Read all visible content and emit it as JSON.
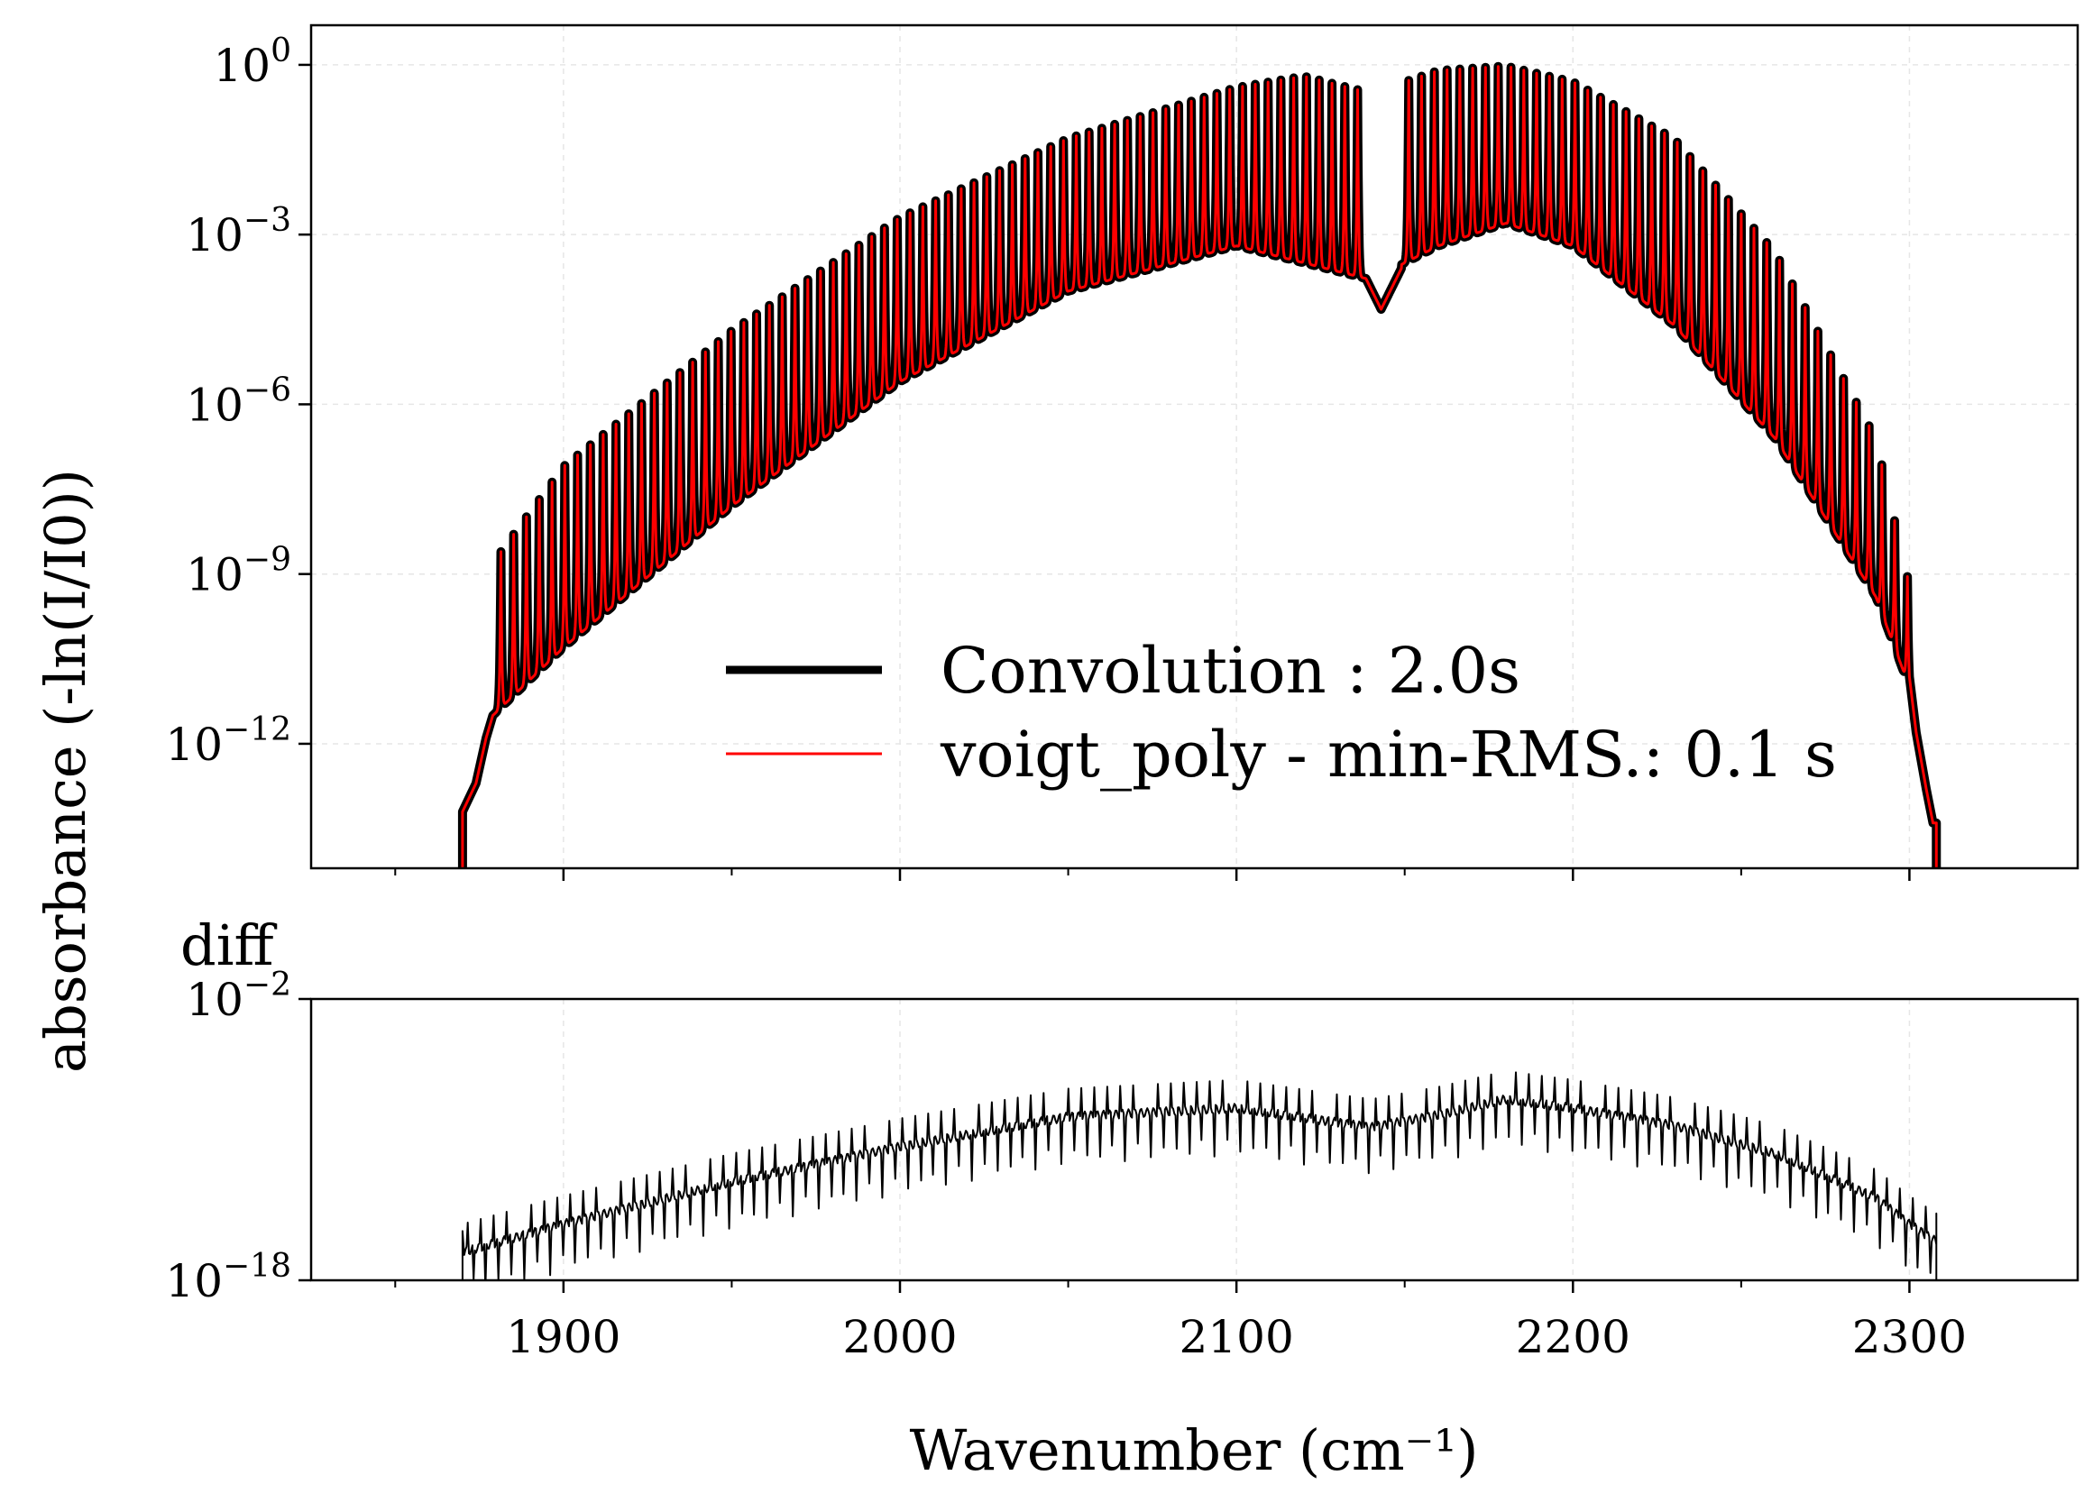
{
  "chart_data": [
    {
      "type": "line",
      "panel": "top",
      "xlabel": "",
      "ylabel": "absorbance (-ln(I/I0))",
      "xlim": [
        1825,
        2350
      ],
      "ylim_log10": [
        -14.2,
        0.7
      ],
      "yscale": "log",
      "yticks": [
        {
          "base": "10",
          "exp": "0",
          "value": 1
        },
        {
          "base": "10",
          "exp": "−3",
          "value": 0.001
        },
        {
          "base": "10",
          "exp": "−6",
          "value": 1e-06
        },
        {
          "base": "10",
          "exp": "−9",
          "value": 1e-09
        },
        {
          "base": "10",
          "exp": "−12",
          "value": 1e-12
        }
      ],
      "grid": true,
      "legend_position": "lower-center",
      "band": {
        "x_start": 1870,
        "x_end": 2308,
        "line_spacing_cm": 3.8,
        "gap_center": 2143,
        "peak_max_log10": -0.05,
        "peak_envelope_points": [
          [
            1879,
            -8.8
          ],
          [
            1900,
            -7.1
          ],
          [
            1950,
            -4.7
          ],
          [
            2000,
            -2.7
          ],
          [
            2050,
            -1.3
          ],
          [
            2100,
            -0.4
          ],
          [
            2120,
            -0.2
          ],
          [
            2140,
            -0.5
          ],
          [
            2160,
            -0.1
          ],
          [
            2180,
            -0.02
          ],
          [
            2200,
            -0.3
          ],
          [
            2230,
            -1.3
          ],
          [
            2260,
            -3.3
          ],
          [
            2290,
            -6.6
          ],
          [
            2300,
            -9.2
          ]
        ],
        "valley_envelope_points": [
          [
            1879,
            -11.5
          ],
          [
            1900,
            -10.3
          ],
          [
            1950,
            -7.8
          ],
          [
            2000,
            -5.6
          ],
          [
            2050,
            -4.0
          ],
          [
            2100,
            -3.2
          ],
          [
            2140,
            -3.8
          ],
          [
            2160,
            -3.2
          ],
          [
            2180,
            -2.8
          ],
          [
            2200,
            -3.2
          ],
          [
            2230,
            -4.6
          ],
          [
            2260,
            -6.6
          ],
          [
            2290,
            -9.4
          ],
          [
            2300,
            -11.0
          ]
        ]
      },
      "series": [
        {
          "name": "Convolution : 2.0s",
          "color": "#000000"
        },
        {
          "name": "voigt_poly - min-RMS.: 0.1 s",
          "color": "#ff0000"
        }
      ]
    },
    {
      "type": "line",
      "panel": "bottom",
      "title": "diff",
      "xlabel": "Wavenumber (cm⁻¹)",
      "xlim": [
        1825,
        2350
      ],
      "xticks": [
        1900,
        2000,
        2100,
        2200,
        2300
      ],
      "ylim_log10": [
        -18,
        -2
      ],
      "yscale": "log",
      "yticks": [
        {
          "base": "10",
          "exp": "−2",
          "value": 0.01
        },
        {
          "base": "10",
          "exp": "−18",
          "value": 1e-18
        }
      ],
      "grid": true,
      "diff_envelope_points": [
        [
          1870,
          -16.4
        ],
        [
          1900,
          -14.8
        ],
        [
          1950,
          -12.4
        ],
        [
          2000,
          -10.4
        ],
        [
          2050,
          -8.7
        ],
        [
          2100,
          -8.2
        ],
        [
          2140,
          -9.3
        ],
        [
          2160,
          -8.6
        ],
        [
          2180,
          -7.7
        ],
        [
          2200,
          -8.2
        ],
        [
          2230,
          -9.2
        ],
        [
          2260,
          -10.8
        ],
        [
          2290,
          -13.3
        ],
        [
          2300,
          -14.8
        ],
        [
          2308,
          -15.8
        ]
      ],
      "series": [
        {
          "name": "",
          "color": "#000000"
        }
      ]
    }
  ]
}
